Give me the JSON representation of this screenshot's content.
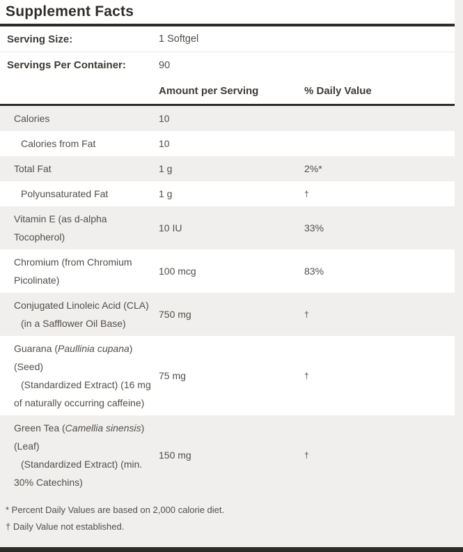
{
  "title": "Supplement Facts",
  "serving_info": [
    {
      "label": "Serving Size:",
      "value": "1 Softgel"
    },
    {
      "label": "Servings Per Container:",
      "value": "90"
    }
  ],
  "columns": {
    "amount": "Amount per Serving",
    "daily_value": "% Daily Value"
  },
  "rows": [
    {
      "name": [
        {
          "text": "Calories"
        }
      ],
      "amount": "10",
      "dv": "",
      "indent": false,
      "shaded": true
    },
    {
      "name": [
        {
          "text": "Calories from Fat"
        }
      ],
      "amount": "10",
      "dv": "",
      "indent": true,
      "shaded": false
    },
    {
      "name": [
        {
          "text": "Total Fat"
        }
      ],
      "amount": "1 g",
      "dv": "2%*",
      "indent": false,
      "shaded": true
    },
    {
      "name": [
        {
          "text": "Polyunsaturated Fat"
        }
      ],
      "amount": "1 g",
      "dv": "†",
      "indent": true,
      "shaded": false
    },
    {
      "name": [
        {
          "text": "Vitamin E (as d-alpha Tocopherol)"
        }
      ],
      "amount": "10 IU",
      "dv": "33%",
      "indent": false,
      "shaded": true
    },
    {
      "name": [
        {
          "text": "Chromium (from Chromium Picolinate)"
        }
      ],
      "amount": "100 mcg",
      "dv": "83%",
      "indent": false,
      "shaded": false
    },
    {
      "name": [
        {
          "text": "Conjugated Linoleic Acid (CLA)"
        }
      ],
      "detail": "(in a Safflower Oil Base)",
      "amount": "750 mg",
      "dv": "†",
      "indent": false,
      "shaded": true
    },
    {
      "name": [
        {
          "text": "Guarana ("
        },
        {
          "text": "Paullinia cupana",
          "italic": true
        },
        {
          "text": ") (Seed)"
        }
      ],
      "detail": "(Standardized Extract) (16 mg of naturally occurring caffeine)",
      "amount": "75 mg",
      "dv": "†",
      "indent": false,
      "shaded": false
    },
    {
      "name": [
        {
          "text": "Green Tea ("
        },
        {
          "text": "Camellia sinensis",
          "italic": true
        },
        {
          "text": ") (Leaf)"
        }
      ],
      "detail": "(Standardized Extract) (min. 30% Catechins)",
      "amount": "150 mg",
      "dv": "†",
      "indent": false,
      "shaded": true
    }
  ],
  "footnotes": [
    "* Percent Daily Values are based on 2,000 calorie diet.",
    "† Daily Value not established."
  ],
  "colors": {
    "rule": "#2e2c29",
    "shaded_row": "#f1efee",
    "white_row": "#ffffff",
    "text": "#514e4a"
  }
}
